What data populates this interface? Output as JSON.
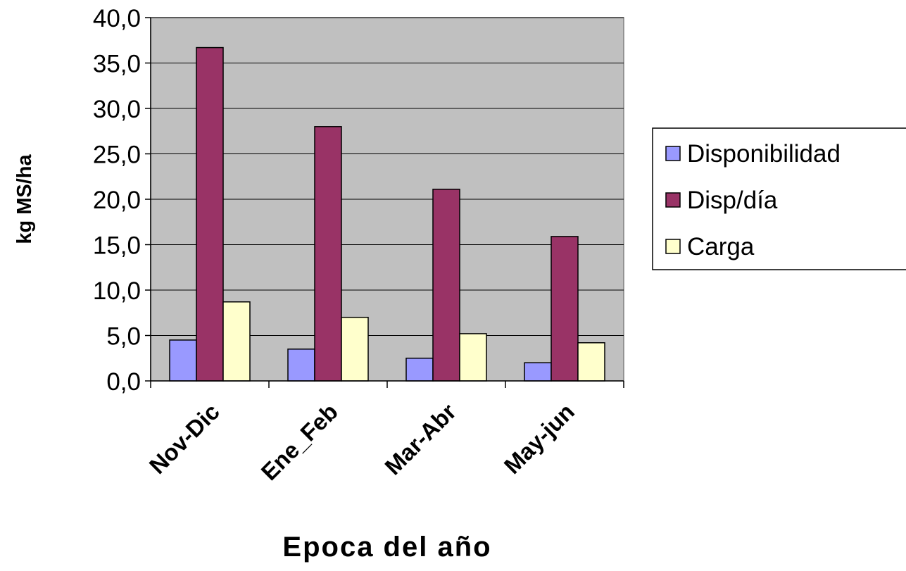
{
  "chart_data": {
    "type": "bar",
    "title": "",
    "xlabel": "Epoca del año",
    "ylabel": "kg MS/ha",
    "categories": [
      "Nov-Dic",
      "Ene_Feb",
      "Mar-Abr",
      "May-jun"
    ],
    "series": [
      {
        "name": "Disponibilidad",
        "color": "#9999ff",
        "values": [
          4.5,
          3.5,
          2.5,
          2.0
        ]
      },
      {
        "name": "Disp/día",
        "color": "#993366",
        "values": [
          36.7,
          28.0,
          21.1,
          15.9
        ]
      },
      {
        "name": "Carga",
        "color": "#ffffcc",
        "values": [
          8.7,
          7.0,
          5.2,
          4.2
        ]
      }
    ],
    "ylim": [
      0,
      40
    ],
    "yticks": [
      "0,0",
      "5,0",
      "10,0",
      "15,0",
      "20,0",
      "25,0",
      "30,0",
      "35,0",
      "40,0"
    ],
    "grid": true,
    "plot_background": "#c0c0c0",
    "legend_position": "right"
  }
}
